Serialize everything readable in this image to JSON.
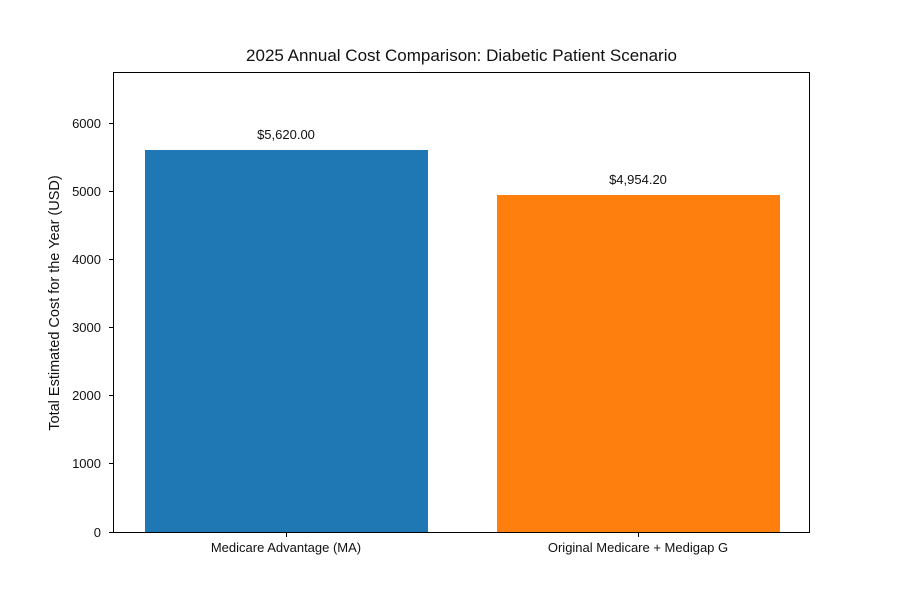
{
  "chart_data": {
    "type": "bar",
    "title": "2025 Annual Cost Comparison: Diabetic Patient Scenario",
    "xlabel": "",
    "ylabel": "Total Estimated Cost for the Year (USD)",
    "categories": [
      "Medicare Advantage (MA)",
      "Original Medicare + Medigap G"
    ],
    "values": [
      5620.0,
      4954.2
    ],
    "value_labels": [
      "$5,620.00",
      "$4,954.20"
    ],
    "bar_colors": [
      "#1f77b4",
      "#ff7f0e"
    ],
    "yticks": [
      0,
      1000,
      2000,
      3000,
      4000,
      5000,
      6000
    ],
    "ytick_labels": [
      "0",
      "1000",
      "2000",
      "3000",
      "4000",
      "5000",
      "6000"
    ],
    "ylim": [
      0,
      6744
    ],
    "grid": false,
    "legend_position": "none",
    "background_color": "#ffffff",
    "spine_color": "#000000",
    "text_color": "#111111"
  }
}
